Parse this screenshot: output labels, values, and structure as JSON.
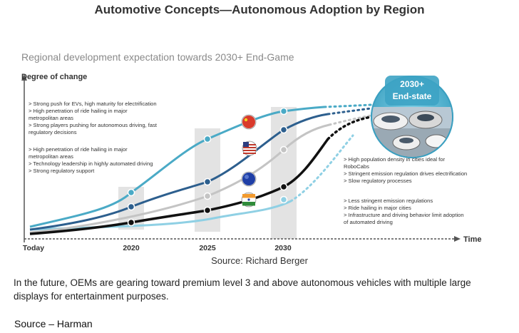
{
  "title": "Automotive Concepts—Autonomous Adoption by Region",
  "subtitle": "Regional development expectation towards 2030+ End-Game",
  "caption": "Source: Richard Berger",
  "footer_text": "In the future, OEMs are gearing toward premium level 3 and above autonomous vehicles with multiple large displays for entertainment purposes.",
  "source_text": "Source – Harman",
  "colors": {
    "china": "#4aaac6",
    "usa": "#2d5f8e",
    "europe": "#c4c4c4",
    "india": "#111111",
    "light": "#8fd0e4",
    "endstate": "#4aaac6"
  },
  "chart_data": {
    "type": "line",
    "ylabel": "Degree of change",
    "xlabel": "Time",
    "x": [
      "Today",
      "2020",
      "2025",
      "2030"
    ],
    "end_state": {
      "line1": "2030+",
      "line2": "End-state"
    },
    "annotations": [
      {
        "key": "china",
        "icon": "china-flag-icon",
        "bullets": [
          "> Strong push for EVs, high maturity for electrification",
          "> High penetration of ride hailing in major",
          "   metropolitan areas",
          "> Strong players pushing for autonomous driving, fast",
          "   regulatory decisions"
        ]
      },
      {
        "key": "usa",
        "icon": "usa-flag-icon",
        "bullets": [
          "> High penetration of ride hailing in major",
          "   metropolitan areas",
          "> Technology leadership in highly automated driving",
          "> Strong regulatory support"
        ]
      },
      {
        "key": "europe",
        "icon": "eu-flag-icon",
        "bullets": [
          "> High population density in cities ideal for",
          "   RoboCabs",
          "> Stringent emission regulation drives electrification",
          "> Slow regulatory processes"
        ]
      },
      {
        "key": "india",
        "icon": "india-flag-icon",
        "bullets": [
          "> Less stringent emission regulations",
          "> Ride hailing in major cities",
          "> Infrastructure and driving behavior limit adoption",
          "   of automated driving"
        ]
      }
    ]
  }
}
